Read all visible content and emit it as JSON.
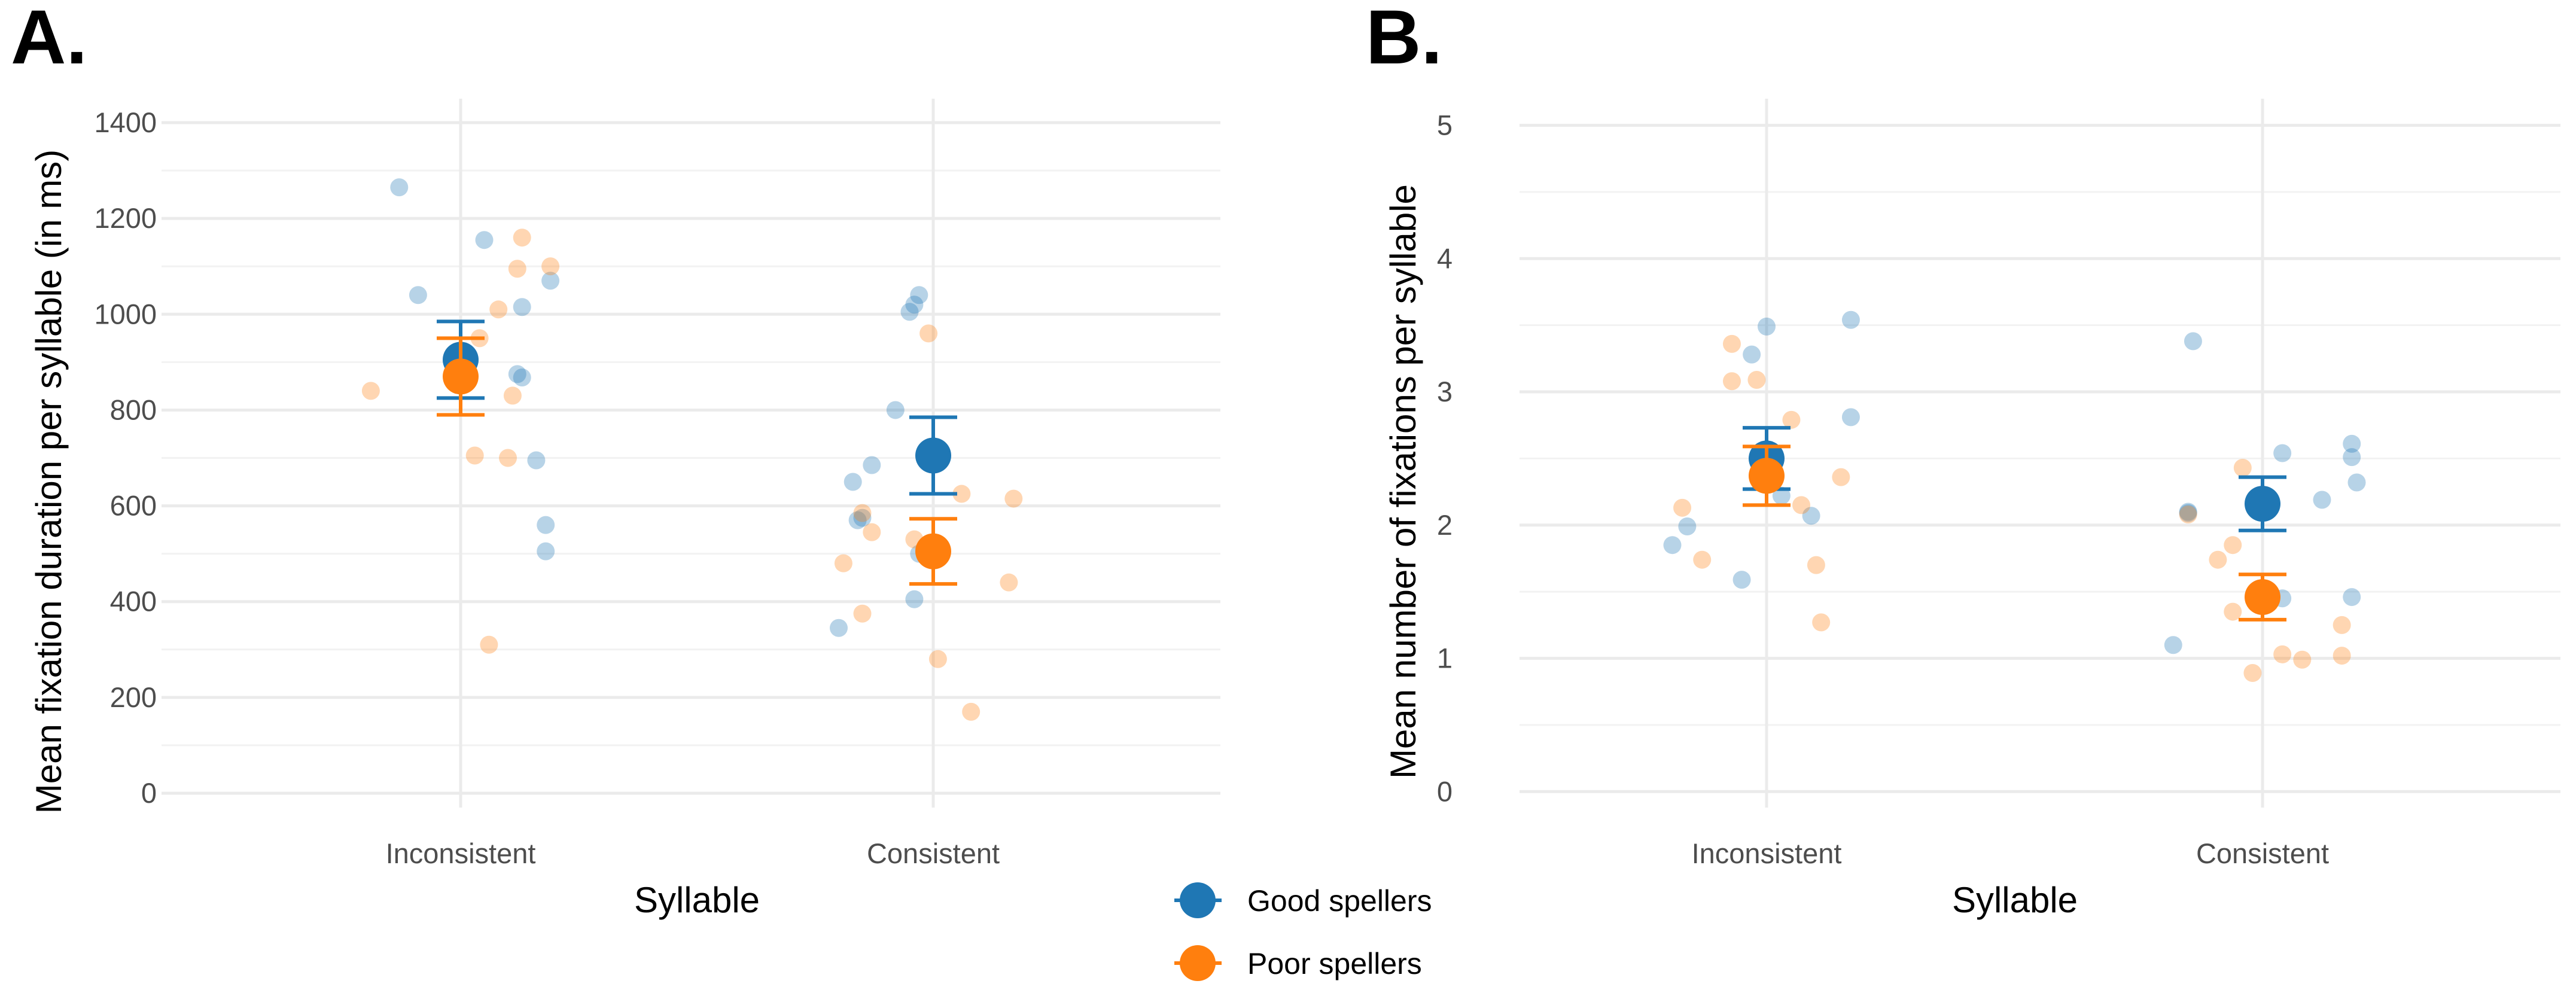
{
  "chart_data": [
    {
      "panel": "A.",
      "type": "scatter",
      "title": "",
      "xlabel": "Syllable",
      "ylabel": "Mean fixation duration per syllable (in ms)",
      "categories": [
        "Inconsistent",
        "Consistent"
      ],
      "ylim": [
        -30,
        1450
      ],
      "yticks": [
        "0",
        "200",
        "400",
        "600",
        "800",
        "1000",
        "1200",
        "1400"
      ],
      "grid": true,
      "series": [
        {
          "name": "Good spellers",
          "color": "#1f77b4",
          "means": [
            905,
            705
          ],
          "se": [
            80,
            80
          ],
          "points": [
            [
              -0.13,
              1265
            ],
            [
              -0.09,
              1040
            ],
            [
              0.05,
              1155
            ],
            [
              0.19,
              1070
            ],
            [
              0.13,
              1015
            ],
            [
              0.12,
              875
            ],
            [
              0.13,
              868
            ],
            [
              0.16,
              695
            ],
            [
              0.18,
              560
            ],
            [
              0.18,
              505
            ],
            [
              0.95,
              1005
            ],
            [
              0.96,
              1020
            ],
            [
              0.97,
              1040
            ],
            [
              0.87,
              685
            ],
            [
              0.83,
              650
            ],
            [
              0.84,
              570
            ],
            [
              0.85,
              575
            ],
            [
              0.97,
              500
            ],
            [
              0.96,
              405
            ],
            [
              0.8,
              345
            ],
            [
              0.92,
              800
            ]
          ]
        },
        {
          "name": "Poor spellers",
          "color": "#ff7f0e",
          "means": [
            870,
            505
          ],
          "se": [
            80,
            68
          ],
          "points": [
            [
              -0.19,
              840
            ],
            [
              0.13,
              1160
            ],
            [
              0.19,
              1100
            ],
            [
              0.12,
              1095
            ],
            [
              0.08,
              1010
            ],
            [
              0.04,
              950
            ],
            [
              0.11,
              830
            ],
            [
              0.03,
              705
            ],
            [
              0.1,
              700
            ],
            [
              0.06,
              310
            ],
            [
              0.99,
              960
            ],
            [
              0.81,
              480
            ],
            [
              0.85,
              585
            ],
            [
              0.87,
              545
            ],
            [
              0.96,
              530
            ],
            [
              1.06,
              625
            ],
            [
              1.17,
              615
            ],
            [
              1.16,
              440
            ],
            [
              0.85,
              375
            ],
            [
              1.01,
              280
            ],
            [
              1.08,
              170
            ]
          ]
        }
      ]
    },
    {
      "panel": "B.",
      "type": "scatter",
      "title": "",
      "xlabel": "Syllable",
      "ylabel": "Mean number of fixations per syllable",
      "categories": [
        "Inconsistent",
        "Consistent"
      ],
      "ylim": [
        -0.12,
        5.2
      ],
      "yticks": [
        "0",
        "1",
        "2",
        "3",
        "4",
        "5"
      ],
      "grid": true,
      "series": [
        {
          "name": "Good spellers",
          "color": "#1f77b4",
          "means": [
            2.5,
            2.16
          ],
          "se": [
            0.23,
            0.2
          ],
          "points": [
            [
              -0.19,
              1.85
            ],
            [
              -0.16,
              1.99
            ],
            [
              -0.05,
              1.59
            ],
            [
              -0.03,
              3.28
            ],
            [
              0.0,
              3.49
            ],
            [
              0.17,
              3.54
            ],
            [
              0.17,
              2.81
            ],
            [
              0.09,
              2.07
            ],
            [
              0.03,
              2.22
            ],
            [
              0.01,
              2.32
            ],
            [
              0.86,
              3.38
            ],
            [
              0.85,
              2.09
            ],
            [
              0.85,
              2.1
            ],
            [
              0.82,
              1.1
            ],
            [
              1.04,
              2.54
            ],
            [
              1.12,
              2.19
            ],
            [
              1.18,
              2.61
            ],
            [
              1.19,
              2.32
            ],
            [
              1.18,
              2.51
            ],
            [
              1.18,
              1.46
            ],
            [
              1.04,
              1.45
            ]
          ]
        },
        {
          "name": "Poor spellers",
          "color": "#ff7f0e",
          "means": [
            2.37,
            1.46
          ],
          "se": [
            0.22,
            0.17
          ],
          "points": [
            [
              -0.17,
              2.13
            ],
            [
              -0.13,
              1.74
            ],
            [
              -0.07,
              3.36
            ],
            [
              -0.07,
              3.08
            ],
            [
              -0.02,
              3.09
            ],
            [
              0.05,
              2.79
            ],
            [
              0.15,
              2.36
            ],
            [
              0.07,
              2.15
            ],
            [
              0.1,
              1.7
            ],
            [
              0.11,
              1.27
            ],
            [
              0.96,
              2.43
            ],
            [
              0.94,
              1.85
            ],
            [
              0.91,
              1.74
            ],
            [
              0.94,
              1.35
            ],
            [
              0.98,
              0.89
            ],
            [
              1.04,
              1.03
            ],
            [
              1.08,
              0.99
            ],
            [
              1.16,
              1.25
            ],
            [
              1.16,
              1.02
            ],
            [
              0.85,
              2.08
            ]
          ]
        }
      ]
    }
  ],
  "legend": {
    "items": [
      {
        "label": "Good spellers",
        "color": "#1f77b4"
      },
      {
        "label": "Poor spellers",
        "color": "#ff7f0e"
      }
    ]
  }
}
